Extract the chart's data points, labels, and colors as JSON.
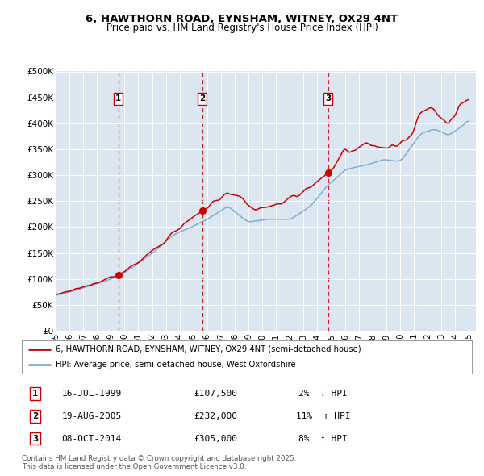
{
  "title_line1": "6, HAWTHORN ROAD, EYNSHAM, WITNEY, OX29 4NT",
  "title_line2": "Price paid vs. HM Land Registry's House Price Index (HPI)",
  "xlim_start": 1995.0,
  "xlim_end": 2025.5,
  "ylim": [
    0,
    500000
  ],
  "yticks": [
    0,
    50000,
    100000,
    150000,
    200000,
    250000,
    300000,
    350000,
    400000,
    450000,
    500000
  ],
  "ytick_labels": [
    "£0",
    "£50K",
    "£100K",
    "£150K",
    "£200K",
    "£250K",
    "£300K",
    "£350K",
    "£400K",
    "£450K",
    "£500K"
  ],
  "bg_color": "#dce6f1",
  "line_color_price": "#cc0000",
  "line_color_hpi": "#7bafd4",
  "sale_marker_color": "#cc0000",
  "vline_color": "#cc0000",
  "box_color": "#cc0000",
  "legend_label_price": "6, HAWTHORN ROAD, EYNSHAM, WITNEY, OX29 4NT (semi-detached house)",
  "legend_label_hpi": "HPI: Average price, semi-detached house, West Oxfordshire",
  "sales": [
    {
      "date_year": 1999.54,
      "price": 107500,
      "label": "1",
      "date_str": "16-JUL-1999",
      "pct": "2%",
      "dir": "↓"
    },
    {
      "date_year": 2005.63,
      "price": 232000,
      "label": "2",
      "date_str": "19-AUG-2005",
      "pct": "11%",
      "dir": "↑"
    },
    {
      "date_year": 2014.77,
      "price": 305000,
      "label": "3",
      "date_str": "08-OCT-2014",
      "pct": "8%",
      "dir": "↑"
    }
  ],
  "footer_line1": "Contains HM Land Registry data © Crown copyright and database right 2025.",
  "footer_line2": "This data is licensed under the Open Government Licence v3.0.",
  "xtick_labels": [
    "95",
    "96",
    "97",
    "98",
    "99",
    "00",
    "01",
    "02",
    "03",
    "04",
    "05",
    "06",
    "07",
    "08",
    "09",
    "10",
    "11",
    "12",
    "13",
    "14",
    "15",
    "16",
    "17",
    "18",
    "19",
    "20",
    "21",
    "22",
    "23",
    "24",
    "25"
  ],
  "xticks": [
    1995,
    1996,
    1997,
    1998,
    1999,
    2000,
    2001,
    2002,
    2003,
    2004,
    2005,
    2006,
    2007,
    2008,
    2009,
    2010,
    2011,
    2012,
    2013,
    2014,
    2015,
    2016,
    2017,
    2018,
    2019,
    2020,
    2021,
    2022,
    2023,
    2024,
    2025
  ]
}
